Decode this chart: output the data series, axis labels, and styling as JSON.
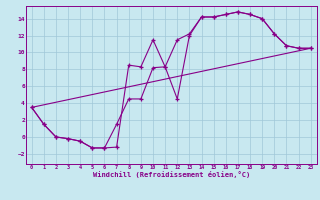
{
  "xlabel": "Windchill (Refroidissement éolien,°C)",
  "background_color": "#c8e8f0",
  "line_color": "#880088",
  "grid_color": "#a0c8d8",
  "xlim": [
    -0.5,
    23.5
  ],
  "ylim": [
    -3.2,
    15.5
  ],
  "xticks": [
    0,
    1,
    2,
    3,
    4,
    5,
    6,
    7,
    8,
    9,
    10,
    11,
    12,
    13,
    14,
    15,
    16,
    17,
    18,
    19,
    20,
    21,
    22,
    23
  ],
  "yticks": [
    -2,
    0,
    2,
    4,
    6,
    8,
    10,
    12,
    14
  ],
  "series1_x": [
    0,
    1,
    2,
    3,
    4,
    5,
    6,
    7,
    8,
    9,
    10,
    11,
    12,
    13,
    14,
    15,
    16,
    17,
    18,
    19,
    20,
    21,
    22,
    23
  ],
  "series1_y": [
    3.5,
    1.5,
    0.0,
    -0.2,
    -0.5,
    -1.3,
    -1.3,
    -1.2,
    8.5,
    8.3,
    11.5,
    8.3,
    4.5,
    12.0,
    14.2,
    14.2,
    14.5,
    14.8,
    14.5,
    14.0,
    12.2,
    10.8,
    10.5,
    10.5
  ],
  "series2_x": [
    0,
    1,
    2,
    3,
    4,
    5,
    6,
    7,
    8,
    9,
    10,
    11,
    12,
    13,
    14,
    15,
    16,
    17,
    18,
    19,
    20,
    21,
    22,
    23
  ],
  "series2_y": [
    3.5,
    1.5,
    0.0,
    -0.2,
    -0.5,
    -1.3,
    -1.3,
    1.5,
    4.5,
    4.5,
    8.2,
    8.3,
    11.5,
    12.2,
    14.2,
    14.2,
    14.5,
    14.8,
    14.5,
    14.0,
    12.2,
    10.8,
    10.5,
    10.5
  ],
  "series3_x": [
    0,
    23
  ],
  "series3_y": [
    3.5,
    10.5
  ]
}
